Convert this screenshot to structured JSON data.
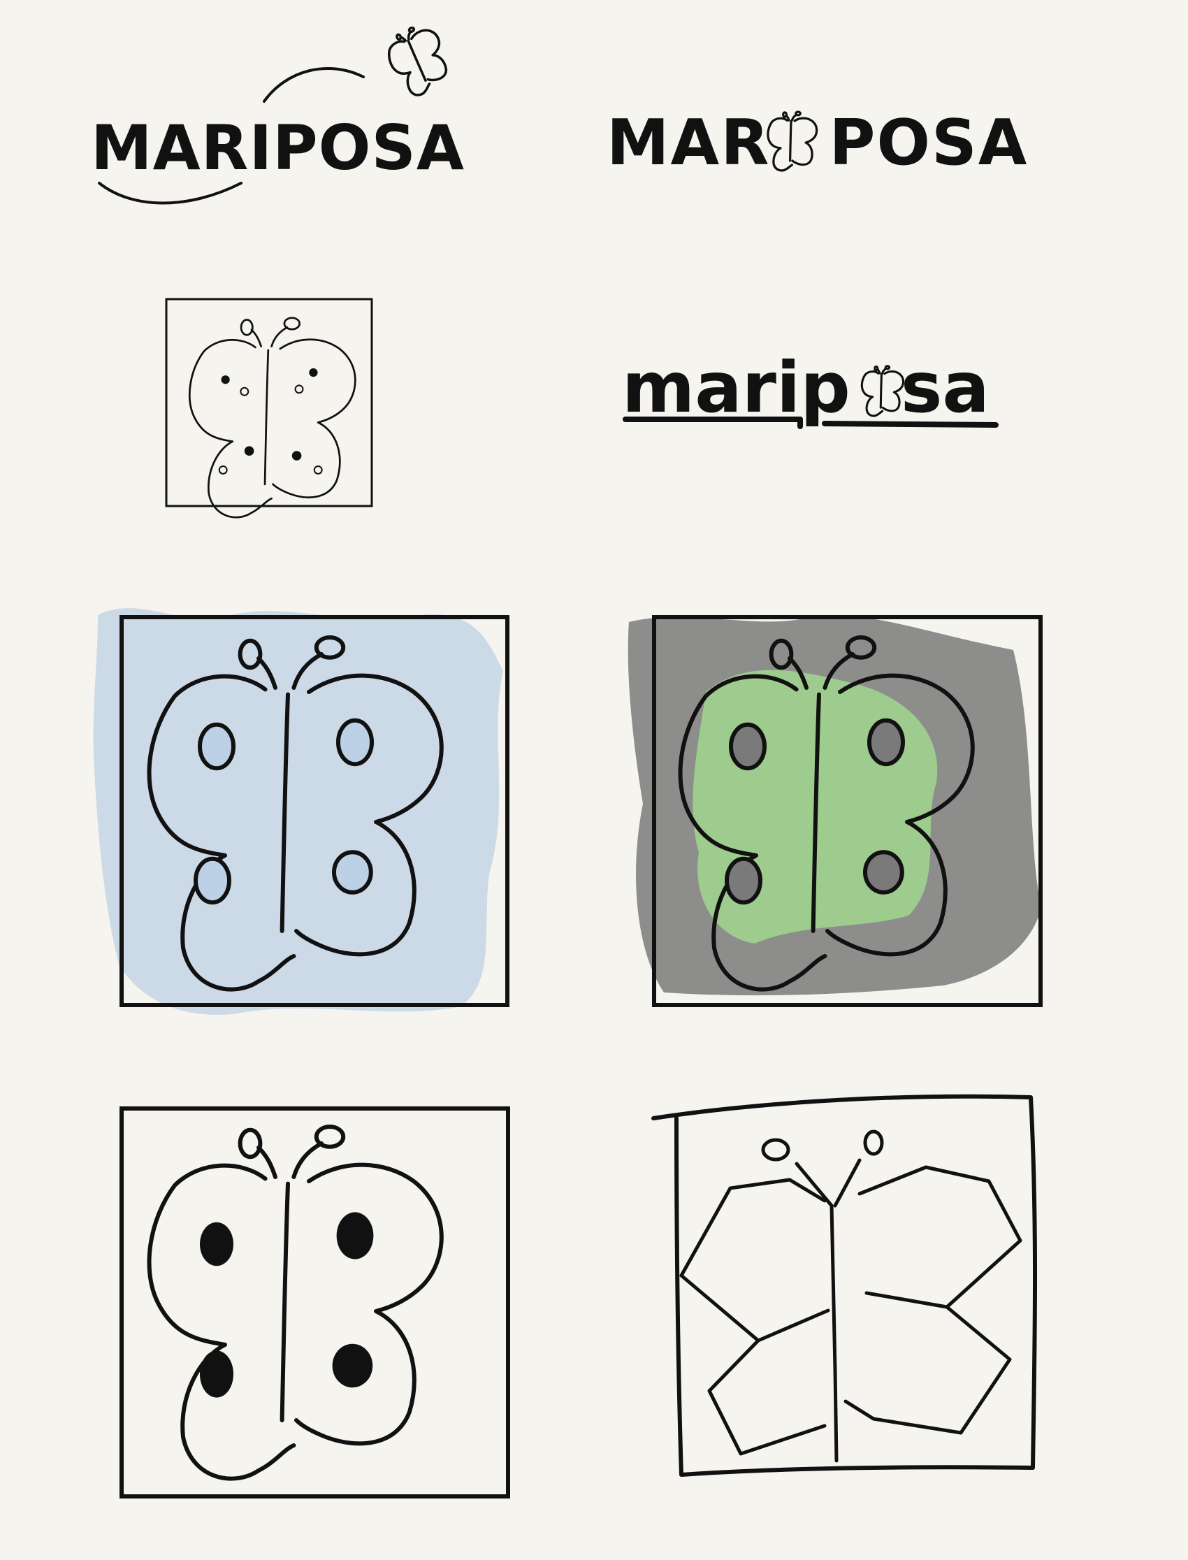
{
  "logos": {
    "wordmark_arc": "MARIPOSA",
    "wordmark_icon_part1": "MAR",
    "wordmark_icon_part2": "POSA",
    "wordmark_lower_part1": "marip",
    "wordmark_lower_part2": "sa"
  },
  "colors": {
    "paper": "#f6f4ef",
    "ink": "#111111",
    "blue_wash": "#c8d6e6",
    "gray_wash": "#7a7a7a",
    "green_wash": "#9fd08e"
  },
  "icons": [
    "butterfly-icon",
    "butterfly-outline-icon",
    "butterfly-blue-icon",
    "butterfly-green-gray-icon",
    "butterfly-filled-spots-icon",
    "butterfly-geometric-icon"
  ]
}
